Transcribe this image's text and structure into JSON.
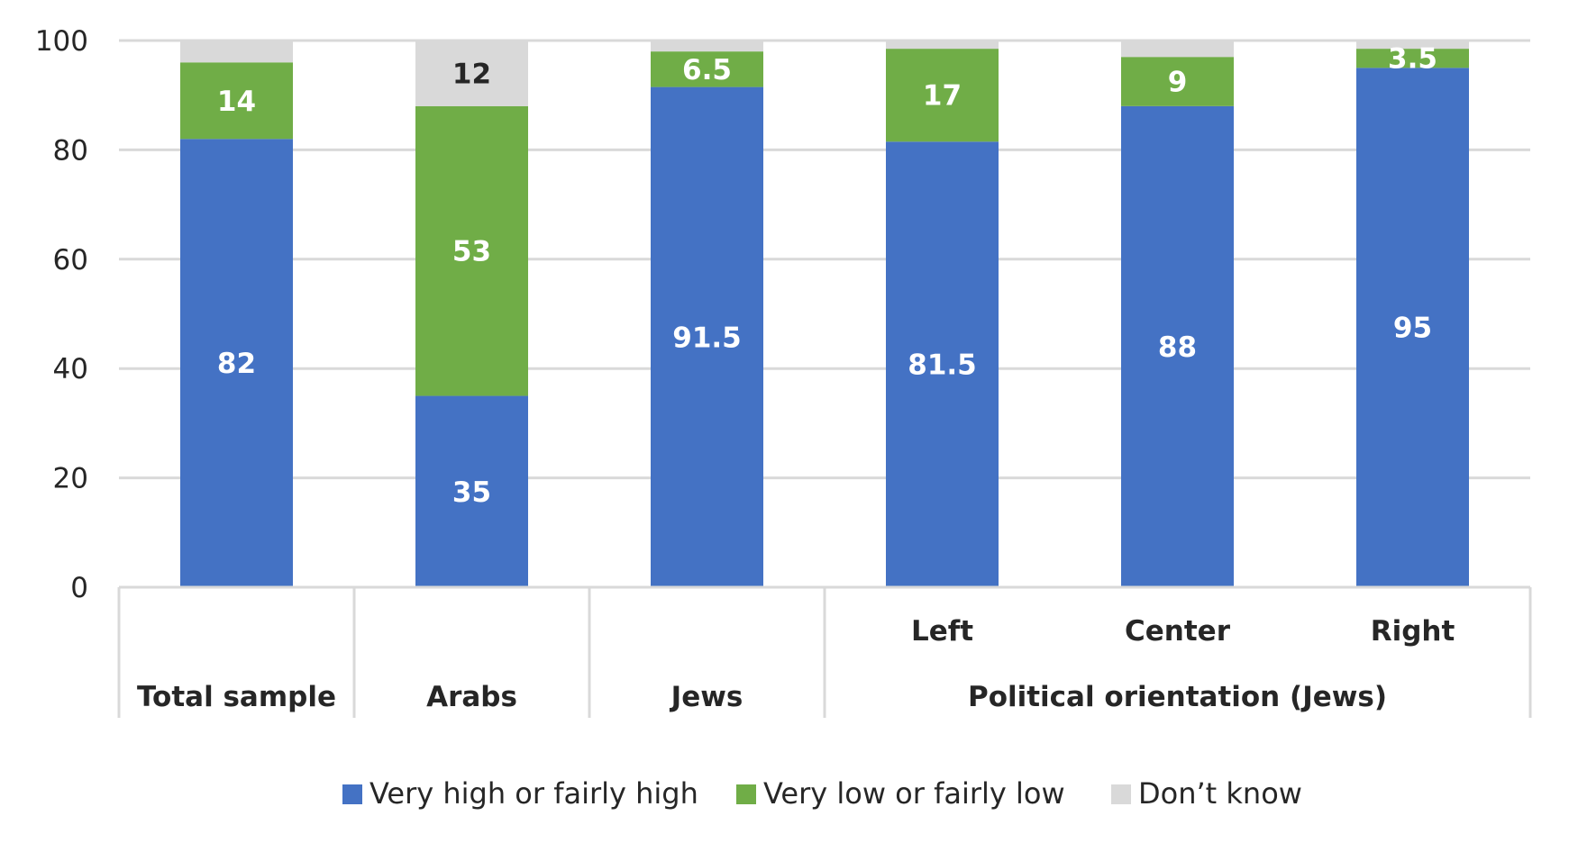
{
  "chart_data": {
    "type": "bar",
    "stacked": true,
    "title": "",
    "xlabel": "",
    "ylabel": "",
    "ylim": [
      0,
      100
    ],
    "yticks": [
      0,
      20,
      40,
      60,
      80,
      100
    ],
    "grid": true,
    "categories": [
      "Total sample",
      "Arabs",
      "Jews",
      "Left",
      "Center",
      "Right"
    ],
    "category_groups": [
      {
        "label": "Total sample",
        "members": [
          "Total sample"
        ]
      },
      {
        "label": "Arabs",
        "members": [
          "Arabs"
        ]
      },
      {
        "label": "Jews",
        "members": [
          "Jews"
        ]
      },
      {
        "label": "Political orientation (Jews)",
        "members": [
          "Left",
          "Center",
          "Right"
        ]
      }
    ],
    "series": [
      {
        "name": "Very high or fairly high",
        "color": "#4472C4",
        "values": [
          82,
          35,
          91.5,
          81.5,
          88,
          95
        ],
        "labels": [
          "82",
          "35",
          "91.5",
          "81.5",
          "88",
          "95"
        ],
        "label_color": "#ffffff"
      },
      {
        "name": "Very low or fairly low",
        "color": "#70AD47",
        "values": [
          14,
          53,
          6.5,
          17,
          9,
          3.5
        ],
        "labels": [
          "14",
          "53",
          "6.5",
          "17",
          "9",
          "3.5"
        ],
        "label_color": "#ffffff"
      },
      {
        "name": "Don’t know",
        "color": "#D9D9D9",
        "values": [
          4,
          12,
          2,
          1.5,
          3,
          1.5
        ],
        "labels": [
          "",
          "12",
          "",
          "",
          "",
          ""
        ],
        "label_color": "#262626"
      }
    ],
    "legend_position": "bottom"
  }
}
